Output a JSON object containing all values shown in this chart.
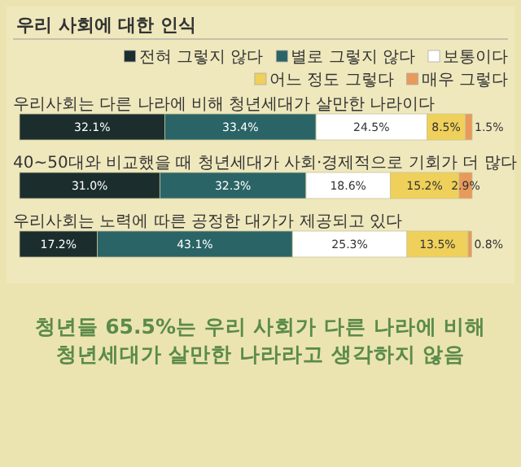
{
  "chart_data": {
    "type": "bar",
    "orientation": "horizontal",
    "stacked": true,
    "title": "우리 사회에 대한 인식",
    "categories": [
      "우리사회는 다른 나라에 비해 청년세대가 살만한 나라이다",
      "40~50대와 비교했을 때 청년세대가 사회·경제적으로 기회가 더 많다",
      "우리사회는 노력에 따른 공정한 대가가 제공되고 있다"
    ],
    "xlim": [
      0,
      100
    ],
    "legend": "top right",
    "tick_labels": false,
    "series": [
      {
        "name": "전혀 그렇지 않다",
        "color": "#1b2e2d",
        "values": [
          32.1,
          31.0,
          17.2
        ],
        "value_labels": [
          "32.1%",
          "31.0%",
          "17.2%"
        ]
      },
      {
        "name": "별로 그렇지 않다",
        "color": "#2a6466",
        "values": [
          33.4,
          32.3,
          43.1
        ],
        "value_labels": [
          "33.4%",
          "32.3%",
          "43.1%"
        ]
      },
      {
        "name": "보통이다",
        "color": "#ffffff",
        "values": [
          24.5,
          18.6,
          25.3
        ],
        "value_labels": [
          "24.5%",
          "18.6%",
          "25.3%"
        ]
      },
      {
        "name": "어느 정도 그렇다",
        "color": "#efd05a",
        "values": [
          8.5,
          15.2,
          13.5
        ],
        "value_labels": [
          "8.5%",
          "15.2%",
          "13.5%"
        ]
      },
      {
        "name": "매우 그렇다",
        "color": "#e89a5a",
        "values": [
          1.5,
          2.9,
          0.8
        ],
        "value_labels": [
          "1.5%",
          "2.9%",
          "0.8%"
        ]
      }
    ],
    "annotations": [
      "청년들 65.5%는 우리 사회가 다른 나라에 비해 청년세대가 살만한 나라라고 생각하지 않음"
    ]
  }
}
